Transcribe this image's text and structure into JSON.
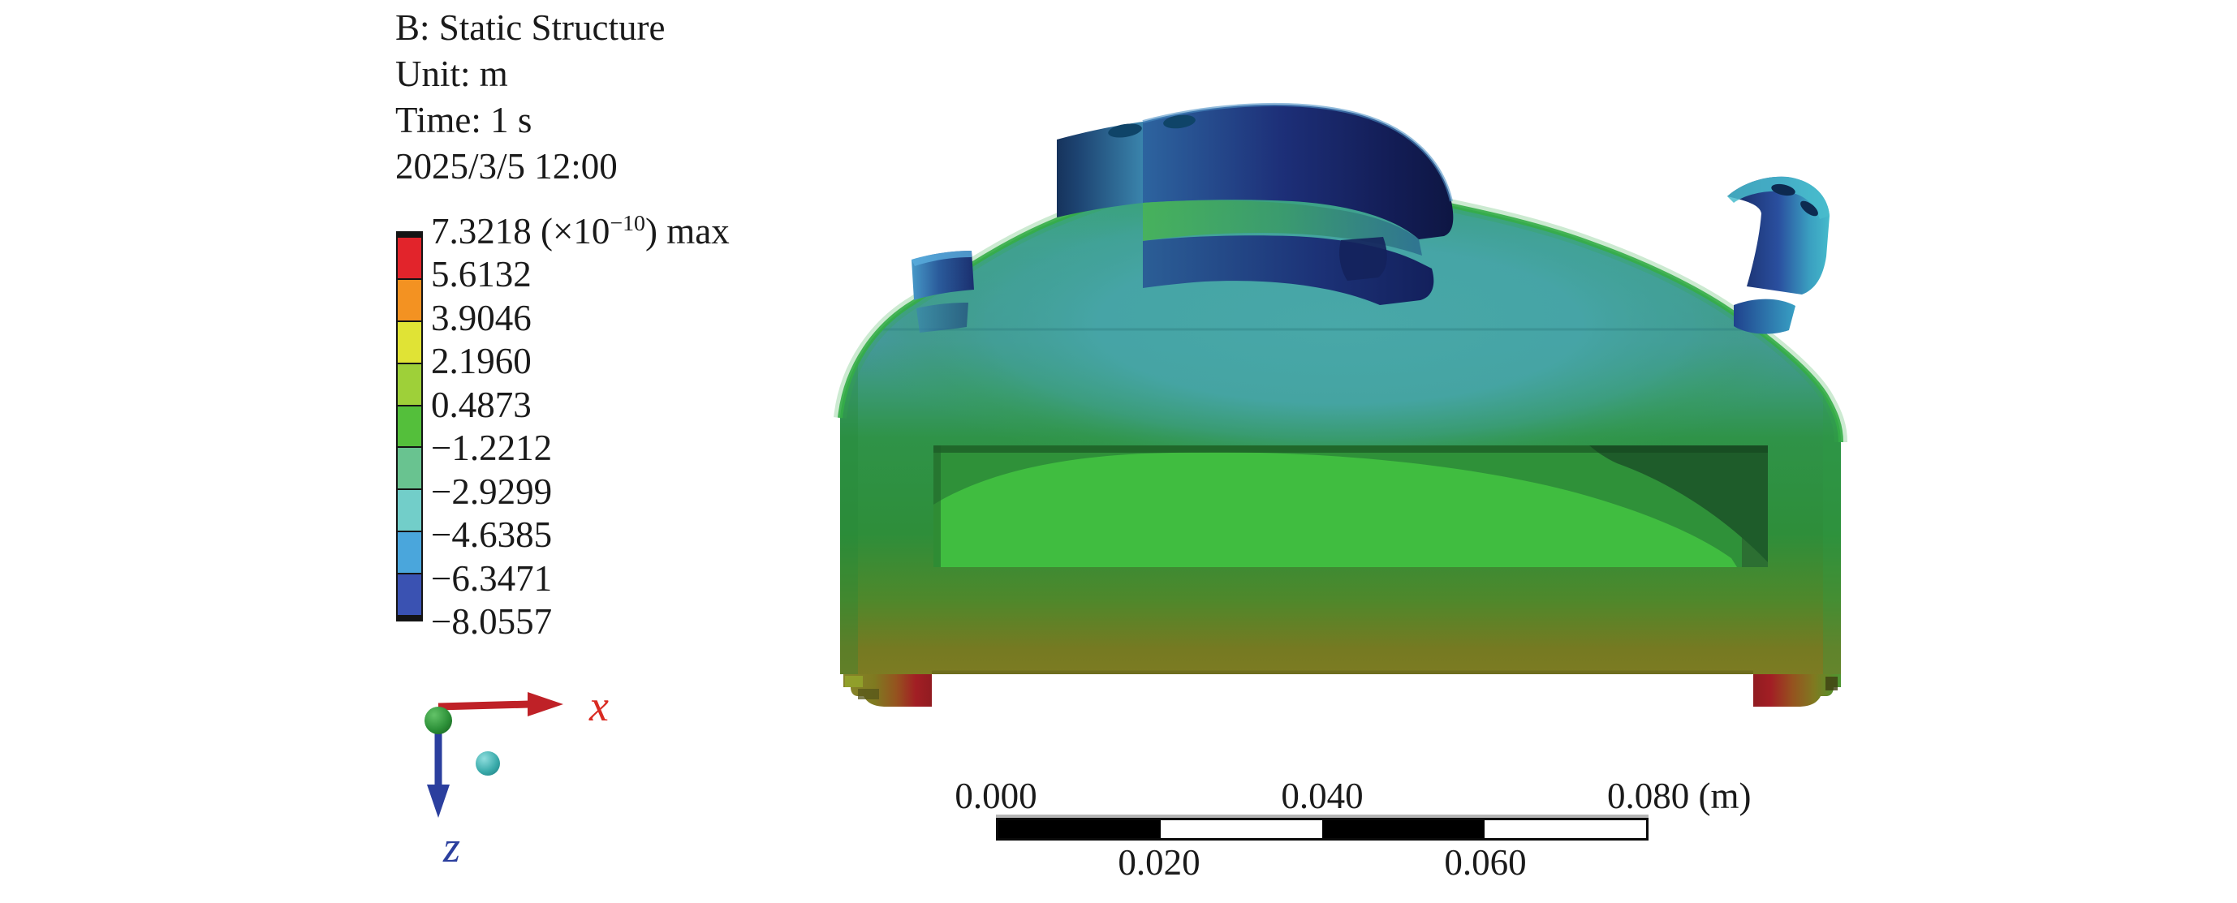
{
  "header": {
    "title": "B: Static Structure",
    "unit": "Unit: m",
    "time": "Time: 1 s",
    "datetime": "2025/3/5 12:00"
  },
  "legend": {
    "max_value": "7.3218",
    "max_unit_prefix": " (×10",
    "max_exponent": "−10",
    "max_unit_suffix": ") max",
    "labels": [
      "5.6132",
      "3.9046",
      "2.1960",
      "0.4873",
      "−1.2212",
      "−2.9299",
      "−4.6385",
      "−6.3471",
      "−8.0557"
    ],
    "colors": [
      "#e2242b",
      "#f39222",
      "#e0e335",
      "#9ed039",
      "#54bf3b",
      "#69c390",
      "#72cec9",
      "#4aa6dc",
      "#3a52b2"
    ]
  },
  "triad": {
    "x_label": "x",
    "z_label": "z",
    "x_color": "#d92b22",
    "z_color": "#2b3f9e",
    "x_axis_color": "#bf2127",
    "z_axis_color": "#2b3f9e",
    "origin_sphere_color": "#2c9038",
    "free_sphere_color": "#3aabab"
  },
  "scalebar": {
    "top": [
      "0.000",
      "0.040",
      "0.080 (m)"
    ],
    "bottom": [
      "0.020",
      "0.060"
    ],
    "segment_colors": [
      "#000000",
      "#ffffff",
      "#000000",
      "#ffffff"
    ]
  },
  "model": {
    "dome_color": "#46a5a5",
    "body_color": "#2f9343",
    "base_color": "#7f7c23",
    "tab_color": "#1d2f78",
    "foot_hotspot_color": "#a21e24",
    "window_inner_color": "#40bd40"
  }
}
